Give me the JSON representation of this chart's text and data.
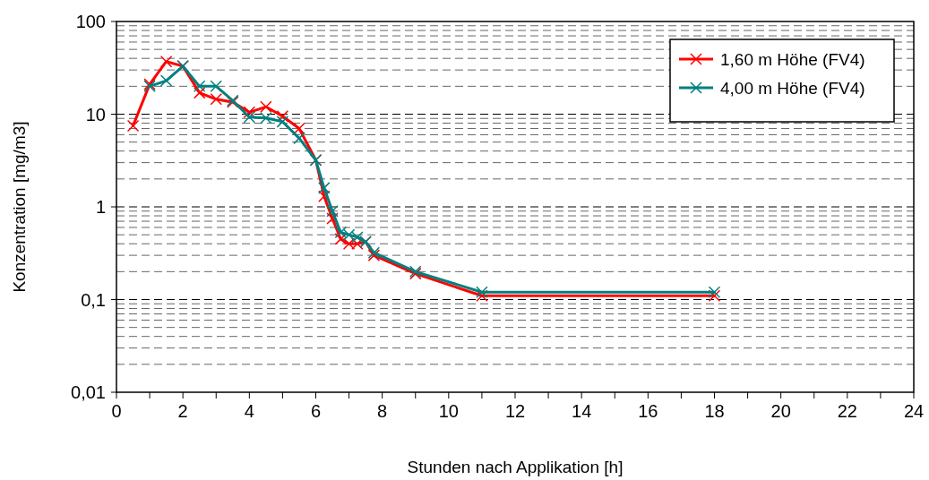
{
  "chart_data": {
    "type": "line",
    "xlabel": "Stunden nach Applikation [h]",
    "ylabel": "Konzentration [mg/m3]",
    "log": "y",
    "grid": "y",
    "legend": "top right",
    "marker": "cross",
    "line_style": "solid",
    "xlim": [
      0,
      24
    ],
    "xticks": [
      0,
      {
        "value": 1,
        "label": null
      },
      2,
      {
        "value": 3,
        "label": null
      },
      4,
      {
        "value": 5,
        "label": null
      },
      6,
      {
        "value": 7,
        "label": null
      },
      8,
      {
        "value": 9,
        "label": null
      },
      10,
      {
        "value": 11,
        "label": null
      },
      12,
      {
        "value": 13,
        "label": null
      },
      14,
      {
        "value": 15,
        "label": null
      },
      16,
      {
        "value": 17,
        "label": null
      },
      18,
      {
        "value": 19,
        "label": null
      },
      20,
      {
        "value": 21,
        "label": null
      },
      22,
      {
        "value": 23,
        "label": null
      },
      24
    ],
    "ylim": [
      0.01,
      100
    ],
    "yticks": [
      {
        "value": 0.01,
        "label": "0,01"
      },
      {
        "value": 0.1,
        "label": "0,1"
      },
      1,
      10,
      100
    ],
    "series": [
      {
        "name": "1,60 m Höhe (FV4)",
        "color": "#ff0000",
        "x": [
          0.5,
          1,
          1.5,
          2,
          2.5,
          3,
          3.5,
          4,
          4.5,
          5,
          5.5,
          6,
          6.25,
          6.5,
          6.75,
          7,
          7.25,
          7.5,
          7.75,
          9,
          11,
          18
        ],
        "values": [
          7.5,
          21,
          37,
          33,
          17,
          14.5,
          13.5,
          10.5,
          12,
          9.5,
          7,
          3.2,
          1.3,
          0.75,
          0.45,
          0.4,
          0.4,
          0.42,
          0.3,
          0.19,
          0.11,
          0.11
        ]
      },
      {
        "name": "4,00 m Höhe (FV4)",
        "color": "#008080",
        "x": [
          1,
          1.5,
          2,
          2.5,
          3,
          3.5,
          4,
          4.5,
          5,
          5.5,
          6,
          6.25,
          6.5,
          6.75,
          7,
          7.25,
          7.5,
          7.75,
          9,
          11,
          18
        ],
        "values": [
          20,
          23,
          33,
          20,
          20,
          14,
          9.3,
          9.1,
          8.3,
          5.5,
          3.2,
          1.6,
          0.9,
          0.53,
          0.5,
          0.47,
          0.42,
          0.32,
          0.2,
          0.12,
          0.12
        ]
      }
    ]
  }
}
